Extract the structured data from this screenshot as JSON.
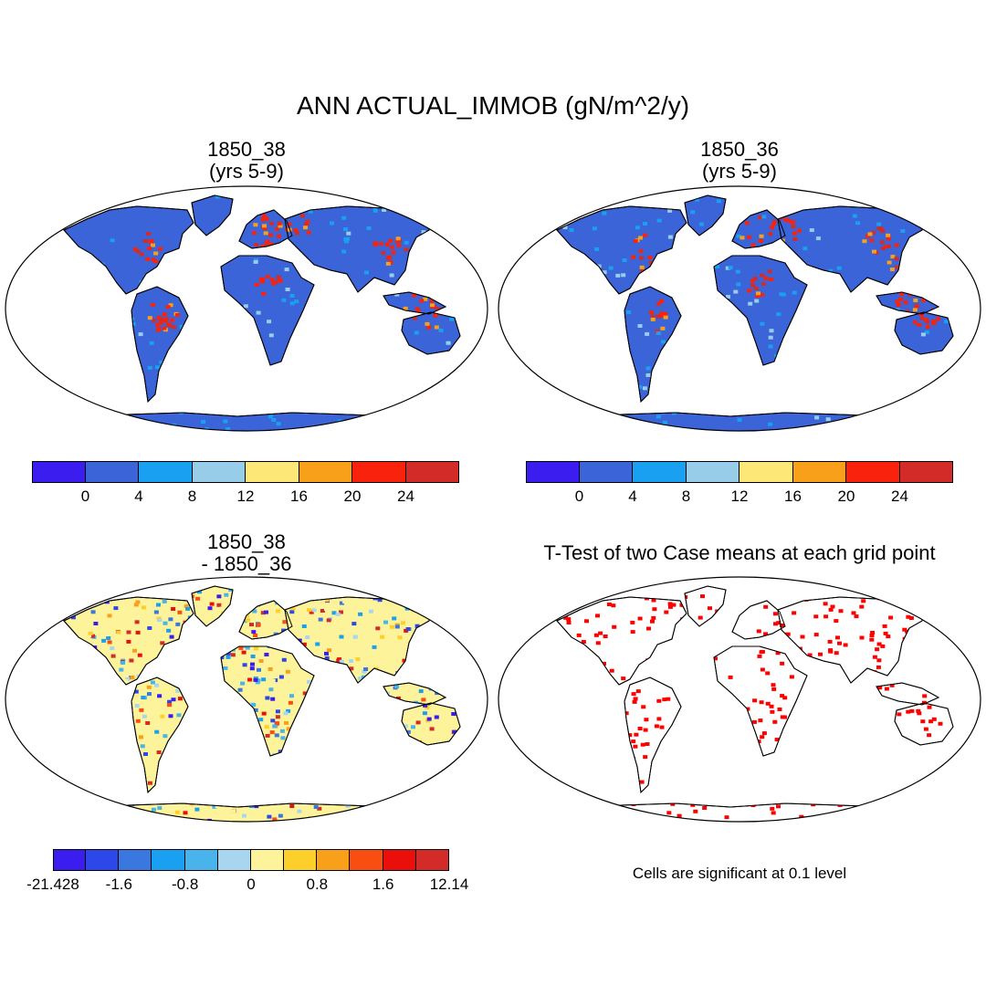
{
  "title": "ANN ACTUAL_IMMOB (gN/m^2/y)",
  "panels": [
    {
      "title_line1": "1850_38",
      "title_line2": "(yrs 5-9)"
    },
    {
      "title_line1": "1850_36",
      "title_line2": "(yrs 5-9)"
    },
    {
      "title_line1": "1850_38",
      "title_line2": "- 1850_36"
    },
    {
      "title_line1": "T-Test of two Case means at each grid point"
    }
  ],
  "significance_note": "Cells are significant at 0.1 level",
  "colorbar_top": {
    "colors": [
      "#3b1eef",
      "#3a64d8",
      "#1aa0f0",
      "#98cdea",
      "#fde877",
      "#f9a01b",
      "#f9230d",
      "#d32b28"
    ],
    "labels": [
      "0",
      "4",
      "8",
      "12",
      "16",
      "20",
      "24"
    ]
  },
  "colorbar_diff": {
    "colors": [
      "#3b1eef",
      "#2c48e8",
      "#3a78e0",
      "#1aa0f0",
      "#49b4ec",
      "#a8d6ee",
      "#fdf39a",
      "#fdcf2a",
      "#f9a01b",
      "#f94e12",
      "#ea0f0a",
      "#d32b28"
    ],
    "labels": [
      "-21.428",
      "-1.6",
      "-0.8",
      "0",
      "0.8",
      "1.6",
      "12.14"
    ]
  },
  "map_colors": {
    "ocean": "#ffffff",
    "land_mean": "#3a64d8",
    "land_diff": "#fdf39a",
    "significant": "#ff0000",
    "outline": "#000000"
  }
}
